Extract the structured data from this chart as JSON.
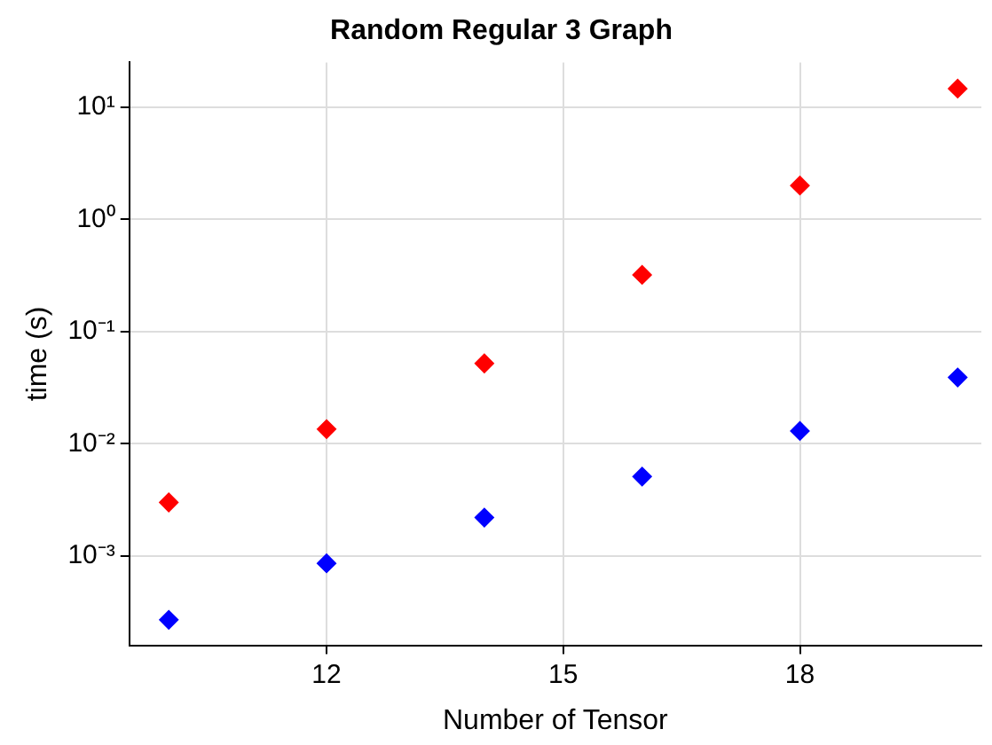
{
  "chart_data": {
    "type": "scatter",
    "title": "Random Regular 3 Graph",
    "xlabel": "Number of Tensor",
    "ylabel": "time (s)",
    "x": [
      10,
      12,
      14,
      16,
      18,
      20
    ],
    "series": [
      {
        "color": "#ff0000",
        "values": [
          0.003,
          0.0135,
          0.052,
          0.32,
          2.0,
          14.6
        ]
      },
      {
        "color": "#0000ff",
        "values": [
          0.00027,
          0.00086,
          0.0022,
          0.0051,
          0.013,
          0.039
        ]
      }
    ],
    "xlim": [
      9.5,
      20.3
    ],
    "xticks": [
      12,
      15,
      18
    ],
    "ylim": [
      0.00016,
      25
    ],
    "yticks": [
      {
        "value": 0.001,
        "label": "10⁻³"
      },
      {
        "value": 0.01,
        "label": "10⁻²"
      },
      {
        "value": 0.1,
        "label": "10⁻¹"
      },
      {
        "value": 1,
        "label": "10⁰"
      },
      {
        "value": 10,
        "label": "10¹"
      }
    ],
    "log": "y",
    "grid": true,
    "legend": false,
    "marker": "diamond"
  }
}
